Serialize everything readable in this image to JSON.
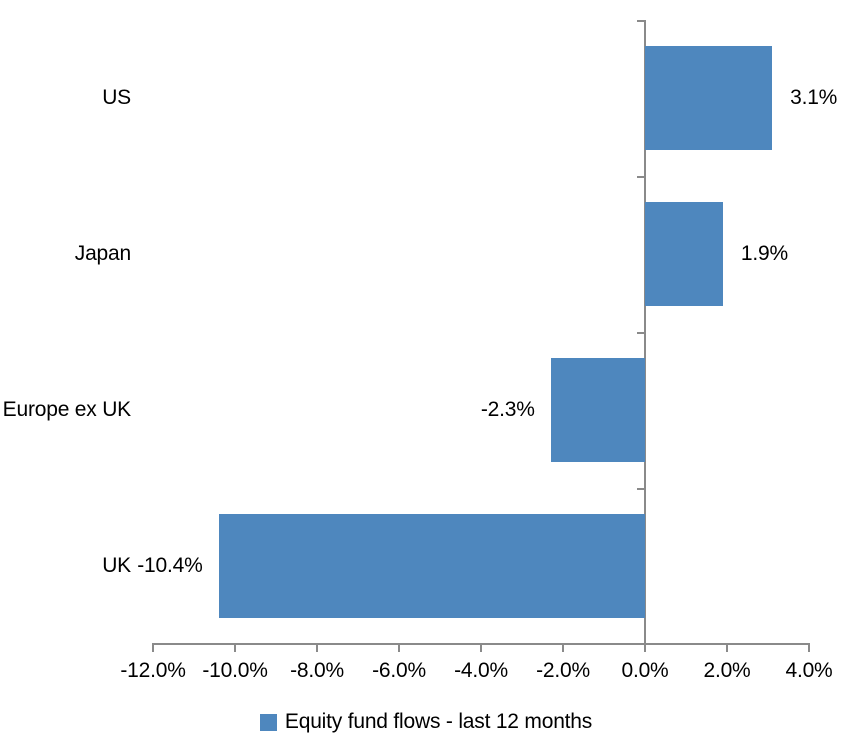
{
  "chart_data": {
    "type": "bar",
    "orientation": "horizontal",
    "title": "",
    "categories": [
      "US",
      "Japan",
      "Europe ex UK",
      "UK"
    ],
    "series": [
      {
        "name": "Equity fund flows - last 12 months",
        "values": [
          3.1,
          1.9,
          -2.3,
          -10.4
        ]
      }
    ],
    "value_labels": [
      "3.1%",
      "1.9%",
      "-2.3%",
      "-10.4%"
    ],
    "x_ticks": [
      {
        "value": -12,
        "label": "-12.0%"
      },
      {
        "value": -10,
        "label": "-10.0%"
      },
      {
        "value": -8,
        "label": "-8.0%"
      },
      {
        "value": -6,
        "label": "-6.0%"
      },
      {
        "value": -4,
        "label": "-4.0%"
      },
      {
        "value": -2,
        "label": "-2.0%"
      },
      {
        "value": 0,
        "label": "0.0%"
      },
      {
        "value": 2,
        "label": "2.0%"
      },
      {
        "value": 4,
        "label": "4.0%"
      }
    ],
    "xlim": [
      -12,
      4
    ],
    "grid": false,
    "legend": {
      "position": "bottom",
      "items": [
        {
          "label": "Equity fund flows - last 12 months",
          "color": "#4e87be"
        }
      ]
    },
    "colors": {
      "bar": "#4e87be",
      "axis": "#8a8a8a",
      "text": "#000000",
      "background": "#ffffff"
    }
  }
}
